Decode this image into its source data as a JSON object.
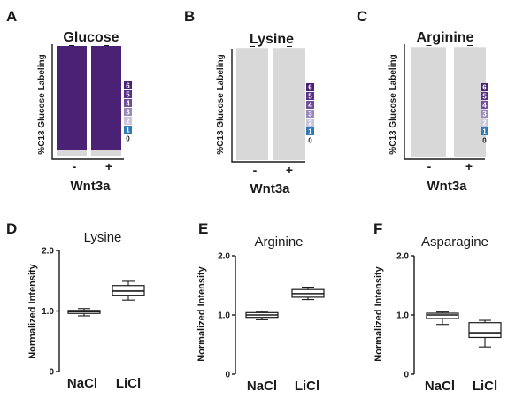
{
  "panels": {
    "A": {
      "letter": "A",
      "title": "Glucose",
      "ylabel": "%C13 Glucose Labeling",
      "xlabel": "Wnt3a"
    },
    "B": {
      "letter": "B",
      "title": "Lysine",
      "ylabel": "%C13 Glucose Labeling",
      "xlabel": "Wnt3a"
    },
    "C": {
      "letter": "C",
      "title": "Arginine",
      "ylabel": "%C13 Glucose Labeling",
      "xlabel": "Wnt3a"
    },
    "D": {
      "letter": "D",
      "title": "Lysine",
      "ylabel": "Normalized Intensity"
    },
    "E": {
      "letter": "E",
      "title": "Arginine",
      "ylabel": "Normalized Intensity"
    },
    "F": {
      "letter": "F",
      "title": "Asparagine",
      "ylabel": "Normalized Intensity"
    }
  },
  "colors": {
    "m6": "#4b2175",
    "m5": "#5b2e8a",
    "m4": "#6f4e9c",
    "m3": "#9a88bd",
    "m2": "#c9c3da",
    "m1": "#2d7ab7",
    "m0": "#d8d8d8",
    "axis": "#1a1a1a"
  },
  "chart_data": [
    {
      "id": "A",
      "type": "bar",
      "stacked": true,
      "title": "Glucose",
      "xlabel": "Wnt3a",
      "ylabel": "%C13 Glucose Labeling",
      "categories": [
        "-",
        "+"
      ],
      "legend_placement": "right",
      "series": [
        {
          "name": "0",
          "color_key": "m0",
          "values": [
            5,
            5
          ]
        },
        {
          "name": "1",
          "color_key": "m1",
          "values": [
            0,
            0
          ]
        },
        {
          "name": "2",
          "color_key": "m2",
          "values": [
            0,
            0
          ]
        },
        {
          "name": "3",
          "color_key": "m3",
          "values": [
            0,
            0
          ]
        },
        {
          "name": "4",
          "color_key": "m4",
          "values": [
            0,
            0
          ]
        },
        {
          "name": "5",
          "color_key": "m5",
          "values": [
            0,
            0
          ]
        },
        {
          "name": "6",
          "color_key": "m6",
          "values": [
            95,
            95
          ]
        }
      ]
    },
    {
      "id": "B",
      "type": "bar",
      "stacked": true,
      "title": "Lysine",
      "xlabel": "Wnt3a",
      "ylabel": "%C13 Glucose Labeling",
      "categories": [
        "-",
        "+"
      ],
      "legend_placement": "right",
      "series": [
        {
          "name": "0",
          "color_key": "m0",
          "values": [
            99,
            99
          ]
        },
        {
          "name": "1",
          "color_key": "m1",
          "values": [
            0,
            0
          ]
        },
        {
          "name": "2",
          "color_key": "m2",
          "values": [
            0,
            0
          ]
        },
        {
          "name": "3",
          "color_key": "m3",
          "values": [
            0,
            0
          ]
        },
        {
          "name": "4",
          "color_key": "m4",
          "values": [
            0,
            0
          ]
        },
        {
          "name": "5",
          "color_key": "m5",
          "values": [
            0,
            0
          ]
        },
        {
          "name": "6",
          "color_key": "m6",
          "values": [
            0,
            0
          ]
        }
      ]
    },
    {
      "id": "C",
      "type": "bar",
      "stacked": true,
      "title": "Arginine",
      "xlabel": "Wnt3a",
      "ylabel": "%C13 Glucose Labeling",
      "categories": [
        "-",
        "+"
      ],
      "legend_placement": "right",
      "series": [
        {
          "name": "0",
          "color_key": "m0",
          "values": [
            99,
            99
          ]
        },
        {
          "name": "1",
          "color_key": "m1",
          "values": [
            0,
            0
          ]
        },
        {
          "name": "2",
          "color_key": "m2",
          "values": [
            0,
            0
          ]
        },
        {
          "name": "3",
          "color_key": "m3",
          "values": [
            0,
            0
          ]
        },
        {
          "name": "4",
          "color_key": "m4",
          "values": [
            0,
            0
          ]
        },
        {
          "name": "5",
          "color_key": "m5",
          "values": [
            0,
            0
          ]
        },
        {
          "name": "6",
          "color_key": "m6",
          "values": [
            0,
            0
          ]
        }
      ]
    },
    {
      "id": "D",
      "type": "box",
      "title": "Lysine",
      "ylabel": "Normalized Intensity",
      "categories": [
        "NaCl",
        "LiCl"
      ],
      "yticks": [
        "0",
        "1.0",
        "2.0"
      ],
      "ylim": [
        0,
        2.0
      ],
      "boxes": [
        {
          "min": 0.92,
          "q1": 0.96,
          "median": 0.99,
          "q3": 1.01,
          "max": 1.04
        },
        {
          "min": 1.18,
          "q1": 1.26,
          "median": 1.33,
          "q3": 1.42,
          "max": 1.49
        }
      ]
    },
    {
      "id": "E",
      "type": "box",
      "title": "Arginine",
      "ylabel": "Normalized Intensity",
      "categories": [
        "NaCl",
        "LiCl"
      ],
      "yticks": [
        "0",
        "1.0",
        "2.0"
      ],
      "ylim": [
        0,
        2.0
      ],
      "boxes": [
        {
          "min": 0.92,
          "q1": 0.96,
          "median": 1.0,
          "q3": 1.04,
          "max": 1.06
        },
        {
          "min": 1.26,
          "q1": 1.3,
          "median": 1.36,
          "q3": 1.43,
          "max": 1.47
        }
      ]
    },
    {
      "id": "F",
      "type": "box",
      "title": "Asparagine",
      "ylabel": "Normalized Intensity",
      "categories": [
        "NaCl",
        "LiCl"
      ],
      "yticks": [
        "0",
        "1.0",
        "2.0"
      ],
      "ylim": [
        0,
        2.0
      ],
      "boxes": [
        {
          "min": 0.84,
          "q1": 0.94,
          "median": 1.0,
          "q3": 1.03,
          "max": 1.05
        },
        {
          "min": 0.46,
          "q1": 0.62,
          "median": 0.7,
          "q3": 0.87,
          "max": 0.91
        }
      ]
    }
  ]
}
